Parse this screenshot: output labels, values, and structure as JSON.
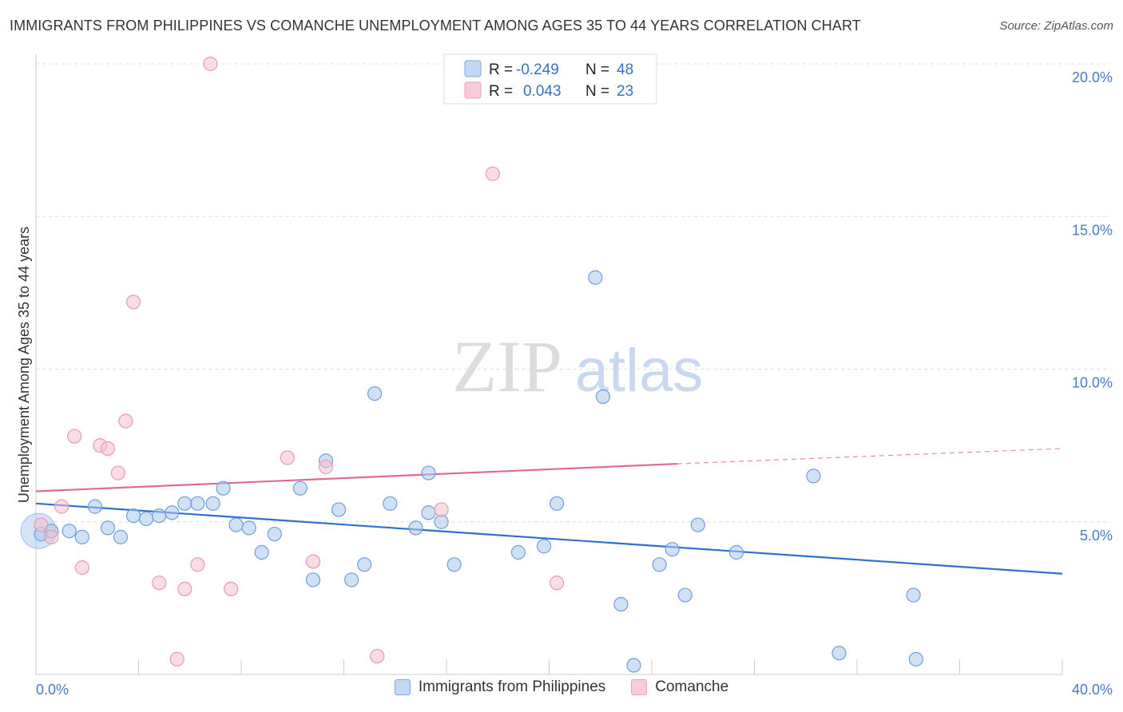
{
  "header": {
    "title": "IMMIGRANTS FROM PHILIPPINES VS COMANCHE UNEMPLOYMENT AMONG AGES 35 TO 44 YEARS CORRELATION CHART",
    "source": "Source: ZipAtlas.com"
  },
  "watermark": {
    "zip": "ZIP",
    "atlas": "atlas"
  },
  "chart_data": {
    "type": "scatter",
    "title": "IMMIGRANTS FROM PHILIPPINES VS COMANCHE UNEMPLOYMENT AMONG AGES 35 TO 44 YEARS CORRELATION CHART",
    "xlabel": "",
    "ylabel": "Unemployment Among Ages 35 to 44 years",
    "xlim": [
      0,
      40
    ],
    "ylim": [
      0,
      20
    ],
    "x_tick_labels": [
      "0.0%",
      "40.0%"
    ],
    "y_ticks": [
      5,
      10,
      15,
      20
    ],
    "y_tick_labels": [
      "5.0%",
      "10.0%",
      "15.0%",
      "20.0%"
    ],
    "grid": true,
    "legend_position": "top-center",
    "series": [
      {
        "name": "Immigrants from Philippines",
        "color": "#a9c8ef",
        "stroke": "#6f9fdc",
        "trend_color": "#2f6fcf",
        "r_label": "R =",
        "r_value": "-0.249",
        "n_label": "N =",
        "n_value": "48",
        "trend": {
          "x0": 0,
          "y0": 5.6,
          "x1": 40,
          "y1": 3.3
        },
        "points": [
          [
            0.2,
            4.6
          ],
          [
            0.6,
            4.7
          ],
          [
            1.3,
            4.7
          ],
          [
            1.8,
            4.5
          ],
          [
            2.3,
            5.5
          ],
          [
            2.8,
            4.8
          ],
          [
            3.3,
            4.5
          ],
          [
            3.8,
            5.2
          ],
          [
            4.3,
            5.1
          ],
          [
            4.8,
            5.2
          ],
          [
            5.3,
            5.3
          ],
          [
            5.8,
            5.6
          ],
          [
            6.3,
            5.6
          ],
          [
            6.9,
            5.6
          ],
          [
            7.3,
            6.1
          ],
          [
            7.8,
            4.9
          ],
          [
            8.3,
            4.8
          ],
          [
            8.8,
            4.0
          ],
          [
            9.3,
            4.6
          ],
          [
            10.3,
            6.1
          ],
          [
            10.8,
            3.1
          ],
          [
            11.3,
            7.0
          ],
          [
            11.8,
            5.4
          ],
          [
            12.3,
            3.1
          ],
          [
            12.8,
            3.6
          ],
          [
            13.2,
            9.2
          ],
          [
            13.8,
            5.6
          ],
          [
            14.8,
            4.8
          ],
          [
            15.3,
            6.6
          ],
          [
            15.8,
            5.0
          ],
          [
            16.3,
            3.6
          ],
          [
            15.3,
            5.3
          ],
          [
            18.8,
            4.0
          ],
          [
            19.8,
            4.2
          ],
          [
            20.3,
            5.6
          ],
          [
            21.8,
            13.0
          ],
          [
            22.1,
            9.1
          ],
          [
            22.8,
            2.3
          ],
          [
            23.3,
            0.3
          ],
          [
            24.3,
            3.6
          ],
          [
            24.8,
            4.1
          ],
          [
            25.3,
            2.6
          ],
          [
            25.8,
            4.9
          ],
          [
            27.3,
            4.0
          ],
          [
            30.3,
            6.5
          ],
          [
            31.3,
            0.7
          ],
          [
            34.2,
            2.6
          ],
          [
            34.3,
            0.5
          ]
        ]
      },
      {
        "name": "Comanche",
        "color": "#f5c0d0",
        "stroke": "#e89ab2",
        "trend_color": "#e06a94",
        "r_label": "R =",
        "r_value": "0.043",
        "n_label": "N =",
        "n_value": "23",
        "trend": {
          "x0": 0,
          "y0": 6.0,
          "x1": 25,
          "y1": 6.9,
          "x_dash_end": 40,
          "y_dash_end": 7.4
        },
        "points": [
          [
            0.2,
            4.9
          ],
          [
            0.6,
            4.5
          ],
          [
            1.0,
            5.5
          ],
          [
            1.5,
            7.8
          ],
          [
            1.8,
            3.5
          ],
          [
            2.5,
            7.5
          ],
          [
            2.8,
            7.4
          ],
          [
            3.2,
            6.6
          ],
          [
            3.5,
            8.3
          ],
          [
            3.8,
            12.2
          ],
          [
            4.8,
            3.0
          ],
          [
            5.5,
            0.5
          ],
          [
            5.8,
            2.8
          ],
          [
            6.3,
            3.6
          ],
          [
            6.8,
            20.0
          ],
          [
            7.6,
            2.8
          ],
          [
            9.8,
            7.1
          ],
          [
            10.8,
            3.7
          ],
          [
            11.3,
            6.8
          ],
          [
            13.3,
            0.6
          ],
          [
            15.8,
            5.4
          ],
          [
            17.8,
            16.4
          ],
          [
            20.3,
            3.0
          ]
        ]
      }
    ]
  }
}
